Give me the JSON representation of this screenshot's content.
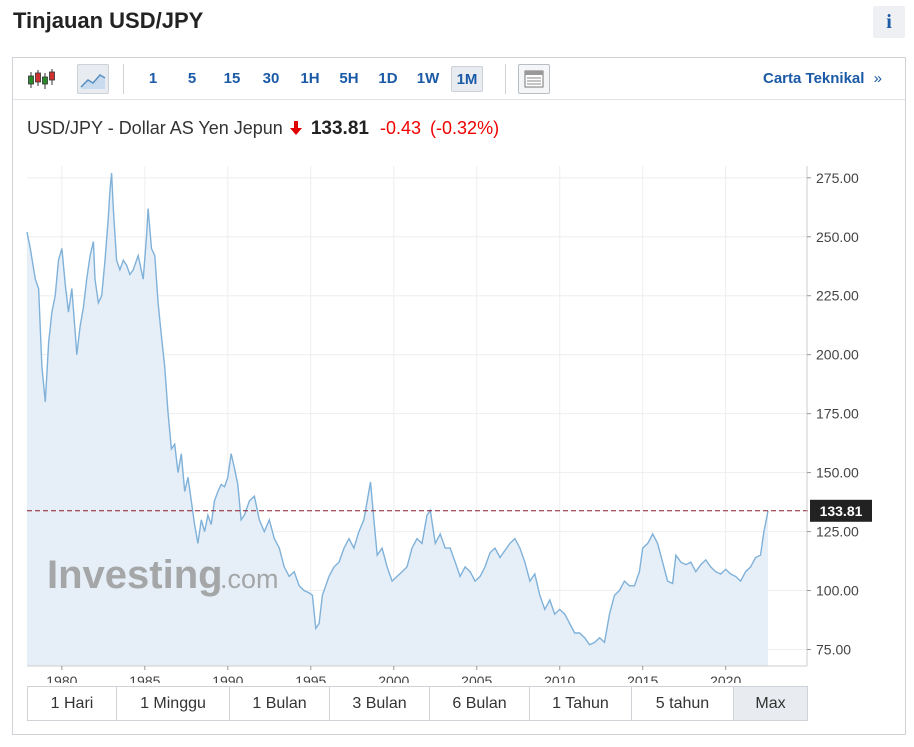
{
  "page_title": "Tinjauan USD/JPY",
  "info_label": "i",
  "toolbar": {
    "timeframes": [
      "1",
      "5",
      "15",
      "30",
      "1H",
      "5H",
      "1D",
      "1W",
      "1M"
    ],
    "active_timeframe": "1M",
    "technical_chart_label": "Carta Teknikal",
    "technical_chart_chevron": "»"
  },
  "quote": {
    "name": "USD/JPY - Dollar AS Yen Jepun",
    "direction_icon": "down-arrow-icon",
    "price": "133.81",
    "change": "-0.43",
    "change_pct": "(-0.32%)",
    "down_color": "#e00000"
  },
  "watermark": {
    "brand": "Investing",
    "suffix": ".com"
  },
  "chart_data": {
    "type": "area",
    "x_tick_labels": [
      "1980",
      "1985",
      "1990",
      "1995",
      "2000",
      "2005",
      "2010",
      "2015",
      "2020"
    ],
    "y_tick_labels": [
      "275.00",
      "250.00",
      "225.00",
      "200.00",
      "175.00",
      "150.00",
      "125.00",
      "100.00",
      "75.00"
    ],
    "xlim": [
      1977.9,
      2024.9
    ],
    "ylim": [
      68,
      280
    ],
    "current_value": 133.81,
    "current_value_label": "133.81",
    "line_color": "#7fb1d9",
    "fill_color": "#e6eff8",
    "reference_line_color": "#8b1a2b",
    "series": [
      {
        "points": [
          [
            1977.9,
            252
          ],
          [
            1978.1,
            245
          ],
          [
            1978.4,
            232
          ],
          [
            1978.6,
            228
          ],
          [
            1978.8,
            195
          ],
          [
            1979.0,
            180
          ],
          [
            1979.2,
            205
          ],
          [
            1979.4,
            218
          ],
          [
            1979.6,
            225
          ],
          [
            1979.8,
            240
          ],
          [
            1980.0,
            245
          ],
          [
            1980.2,
            230
          ],
          [
            1980.4,
            218
          ],
          [
            1980.6,
            228
          ],
          [
            1980.8,
            210
          ],
          [
            1980.9,
            200
          ],
          [
            1981.1,
            212
          ],
          [
            1981.3,
            220
          ],
          [
            1981.5,
            232
          ],
          [
            1981.7,
            242
          ],
          [
            1981.9,
            248
          ],
          [
            1982.0,
            232
          ],
          [
            1982.2,
            222
          ],
          [
            1982.4,
            225
          ],
          [
            1982.6,
            240
          ],
          [
            1982.8,
            258
          ],
          [
            1982.9,
            270
          ],
          [
            1983.0,
            277
          ],
          [
            1983.1,
            262
          ],
          [
            1983.3,
            240
          ],
          [
            1983.5,
            236
          ],
          [
            1983.7,
            240
          ],
          [
            1983.9,
            238
          ],
          [
            1984.1,
            234
          ],
          [
            1984.3,
            236
          ],
          [
            1984.6,
            242
          ],
          [
            1984.9,
            232
          ],
          [
            1985.1,
            250
          ],
          [
            1985.2,
            262
          ],
          [
            1985.4,
            245
          ],
          [
            1985.6,
            242
          ],
          [
            1985.8,
            222
          ],
          [
            1986.0,
            208
          ],
          [
            1986.2,
            195
          ],
          [
            1986.4,
            175
          ],
          [
            1986.6,
            160
          ],
          [
            1986.8,
            162
          ],
          [
            1987.0,
            150
          ],
          [
            1987.2,
            158
          ],
          [
            1987.4,
            142
          ],
          [
            1987.6,
            148
          ],
          [
            1987.8,
            138
          ],
          [
            1988.0,
            128
          ],
          [
            1988.2,
            120
          ],
          [
            1988.4,
            130
          ],
          [
            1988.6,
            125
          ],
          [
            1988.8,
            132
          ],
          [
            1989.0,
            128
          ],
          [
            1989.2,
            138
          ],
          [
            1989.4,
            142
          ],
          [
            1989.6,
            145
          ],
          [
            1989.8,
            144
          ],
          [
            1990.0,
            148
          ],
          [
            1990.2,
            158
          ],
          [
            1990.4,
            152
          ],
          [
            1990.6,
            145
          ],
          [
            1990.8,
            130
          ],
          [
            1991.0,
            132
          ],
          [
            1991.3,
            138
          ],
          [
            1991.6,
            140
          ],
          [
            1991.9,
            130
          ],
          [
            1992.2,
            125
          ],
          [
            1992.5,
            130
          ],
          [
            1992.8,
            122
          ],
          [
            1993.1,
            118
          ],
          [
            1993.4,
            110
          ],
          [
            1993.7,
            106
          ],
          [
            1994.0,
            108
          ],
          [
            1994.3,
            102
          ],
          [
            1994.6,
            100
          ],
          [
            1994.9,
            99
          ],
          [
            1995.1,
            98
          ],
          [
            1995.3,
            84
          ],
          [
            1995.5,
            86
          ],
          [
            1995.7,
            98
          ],
          [
            1995.9,
            102
          ],
          [
            1996.1,
            106
          ],
          [
            1996.4,
            110
          ],
          [
            1996.7,
            112
          ],
          [
            1997.0,
            118
          ],
          [
            1997.3,
            122
          ],
          [
            1997.6,
            118
          ],
          [
            1997.9,
            125
          ],
          [
            1998.2,
            130
          ],
          [
            1998.4,
            138
          ],
          [
            1998.6,
            146
          ],
          [
            1998.8,
            130
          ],
          [
            1999.0,
            115
          ],
          [
            1999.3,
            118
          ],
          [
            1999.6,
            110
          ],
          [
            1999.9,
            104
          ],
          [
            2000.2,
            106
          ],
          [
            2000.5,
            108
          ],
          [
            2000.8,
            110
          ],
          [
            2001.1,
            118
          ],
          [
            2001.4,
            122
          ],
          [
            2001.7,
            120
          ],
          [
            2002.0,
            132
          ],
          [
            2002.2,
            134
          ],
          [
            2002.5,
            120
          ],
          [
            2002.8,
            124
          ],
          [
            2003.1,
            118
          ],
          [
            2003.4,
            118
          ],
          [
            2003.7,
            112
          ],
          [
            2004.0,
            106
          ],
          [
            2004.3,
            110
          ],
          [
            2004.6,
            108
          ],
          [
            2004.9,
            104
          ],
          [
            2005.2,
            106
          ],
          [
            2005.5,
            110
          ],
          [
            2005.8,
            116
          ],
          [
            2006.1,
            118
          ],
          [
            2006.4,
            114
          ],
          [
            2006.7,
            117
          ],
          [
            2007.0,
            120
          ],
          [
            2007.3,
            122
          ],
          [
            2007.6,
            118
          ],
          [
            2007.9,
            112
          ],
          [
            2008.2,
            104
          ],
          [
            2008.5,
            107
          ],
          [
            2008.8,
            98
          ],
          [
            2009.1,
            92
          ],
          [
            2009.4,
            96
          ],
          [
            2009.7,
            90
          ],
          [
            2010.0,
            92
          ],
          [
            2010.3,
            90
          ],
          [
            2010.6,
            86
          ],
          [
            2010.9,
            82
          ],
          [
            2011.2,
            82
          ],
          [
            2011.5,
            80
          ],
          [
            2011.8,
            77
          ],
          [
            2012.1,
            78
          ],
          [
            2012.4,
            80
          ],
          [
            2012.7,
            78
          ],
          [
            2013.0,
            90
          ],
          [
            2013.3,
            98
          ],
          [
            2013.6,
            100
          ],
          [
            2013.9,
            104
          ],
          [
            2014.2,
            102
          ],
          [
            2014.5,
            102
          ],
          [
            2014.8,
            108
          ],
          [
            2015.0,
            118
          ],
          [
            2015.3,
            120
          ],
          [
            2015.6,
            124
          ],
          [
            2015.9,
            120
          ],
          [
            2016.2,
            112
          ],
          [
            2016.5,
            104
          ],
          [
            2016.8,
            103
          ],
          [
            2017.0,
            115
          ],
          [
            2017.3,
            112
          ],
          [
            2017.6,
            111
          ],
          [
            2017.9,
            112
          ],
          [
            2018.2,
            108
          ],
          [
            2018.5,
            111
          ],
          [
            2018.8,
            113
          ],
          [
            2019.1,
            110
          ],
          [
            2019.4,
            108
          ],
          [
            2019.7,
            107
          ],
          [
            2020.0,
            109
          ],
          [
            2020.3,
            107
          ],
          [
            2020.6,
            106
          ],
          [
            2020.9,
            104
          ],
          [
            2021.2,
            108
          ],
          [
            2021.5,
            110
          ],
          [
            2021.8,
            114
          ],
          [
            2022.1,
            115
          ],
          [
            2022.3,
            125
          ],
          [
            2022.45,
            130
          ],
          [
            2022.55,
            133.81
          ]
        ]
      }
    ]
  },
  "ranges": [
    "1 Hari",
    "1 Minggu",
    "1 Bulan",
    "3 Bulan",
    "6 Bulan",
    "1 Tahun",
    "5 tahun",
    "Max"
  ],
  "active_range": "Max"
}
